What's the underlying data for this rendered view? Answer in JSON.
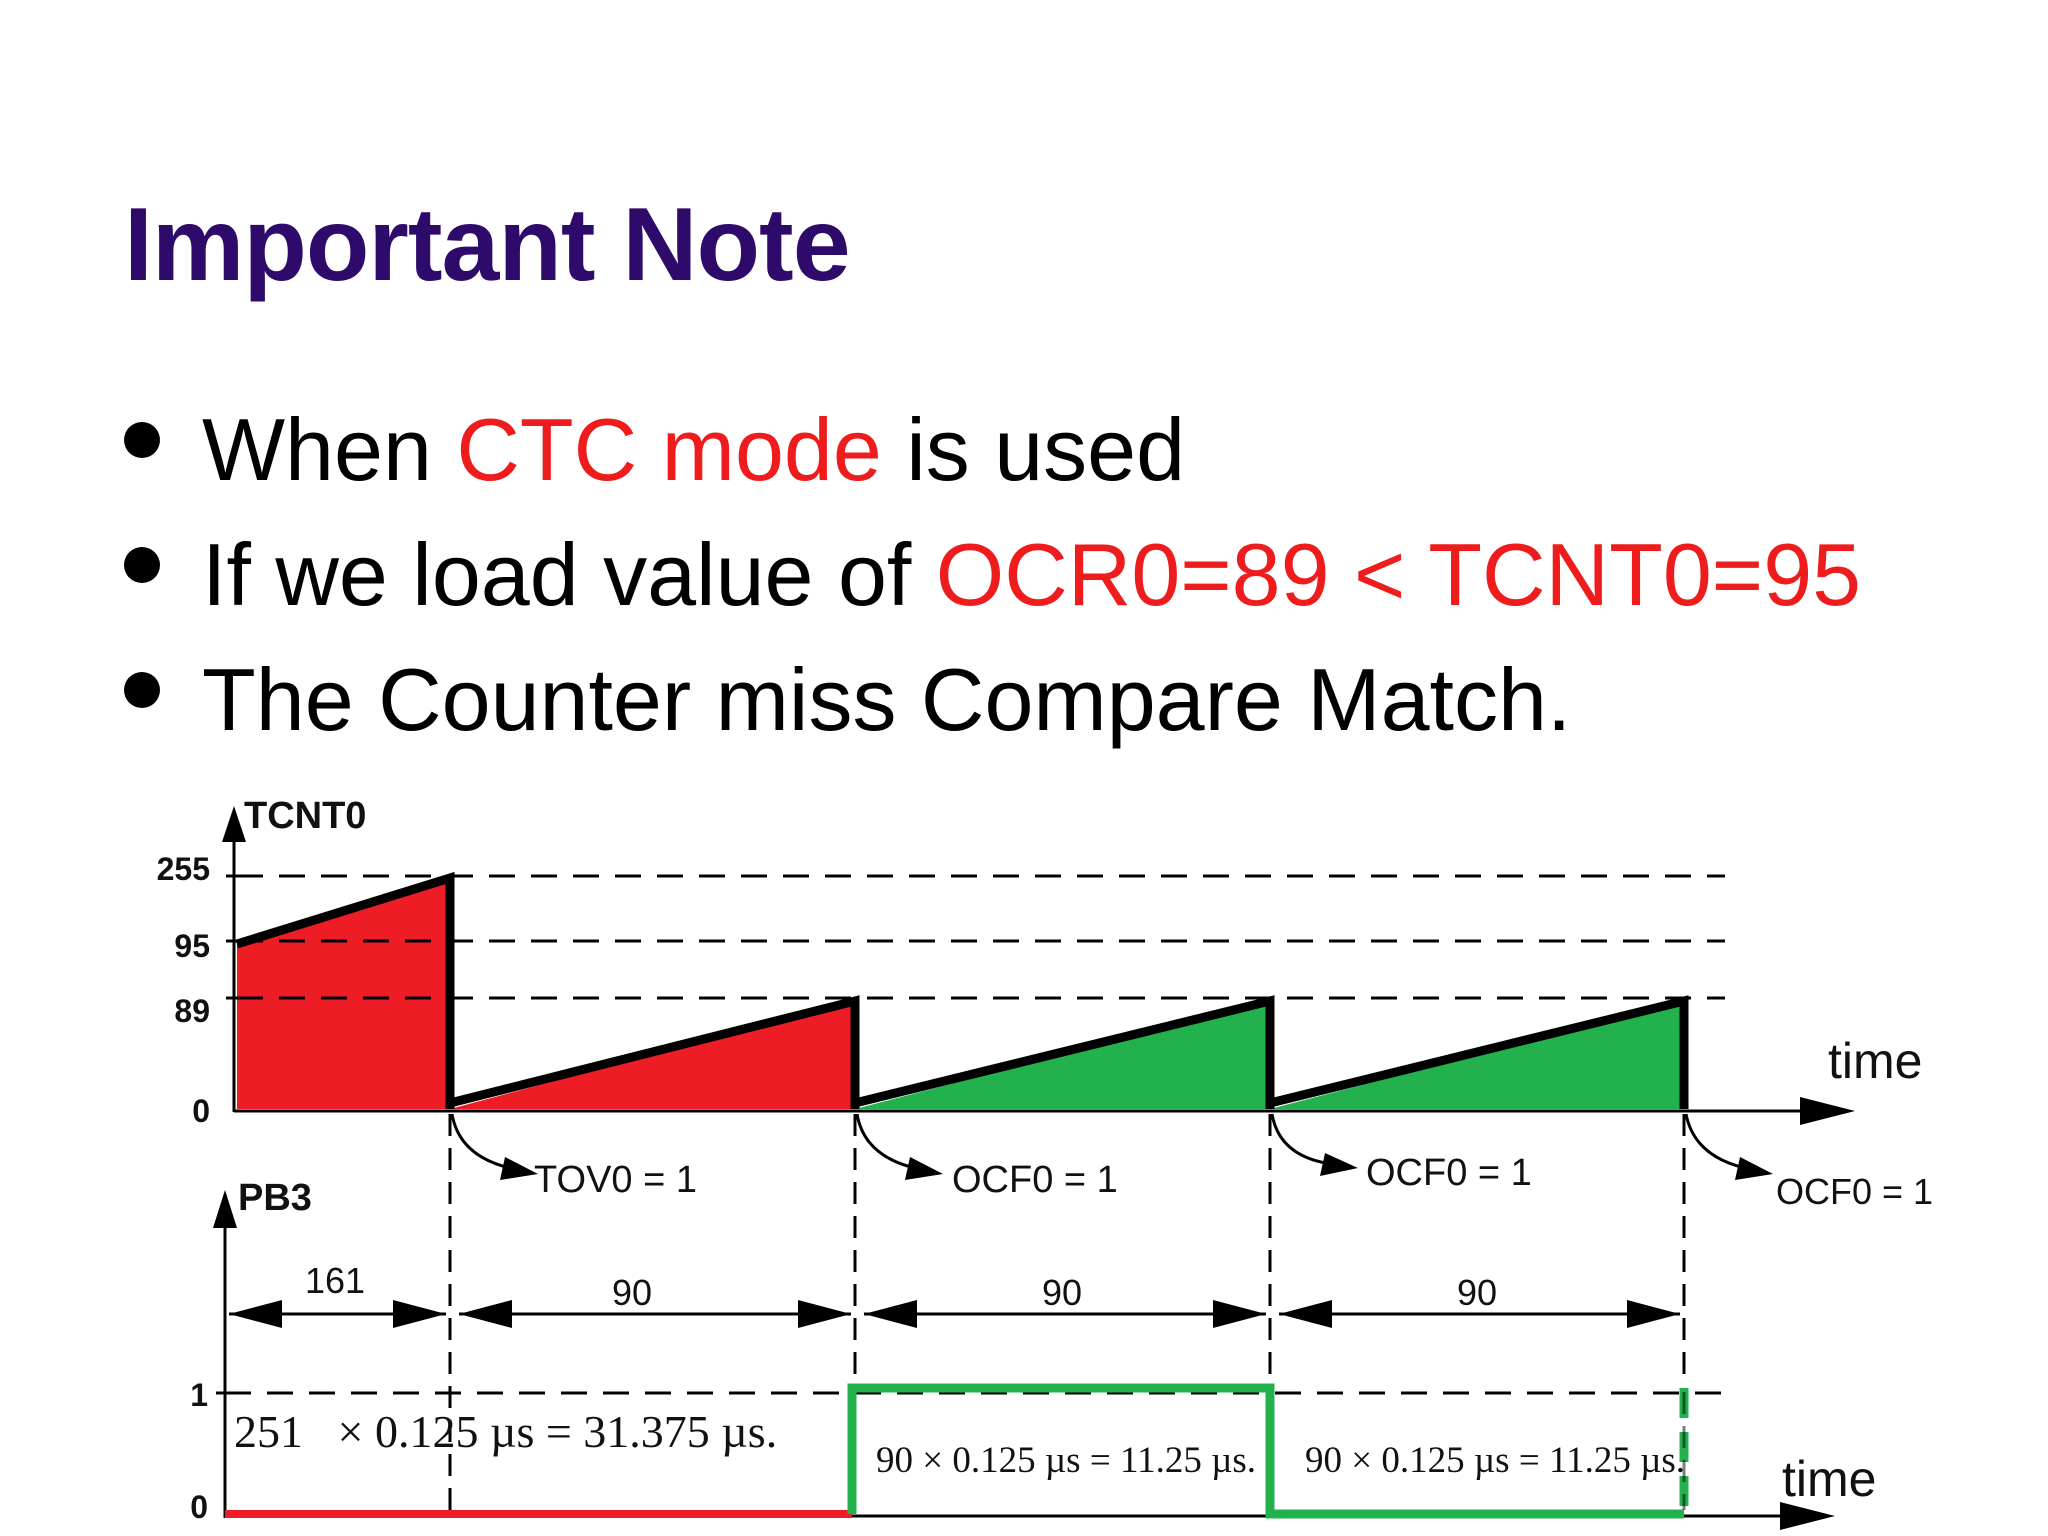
{
  "slide": {
    "title": "Important Note",
    "bullets": [
      {
        "pre": "When ",
        "hl": "CTC mode",
        "post": " is used"
      },
      {
        "pre": "If we load value of ",
        "hl": "OCR0=89 < TCNT0=95",
        "post": ""
      },
      {
        "pre": "The Counter miss Compare Match.",
        "hl": "",
        "post": ""
      }
    ]
  },
  "diagram": {
    "top_axis_label": "TCNT0",
    "top_ticks": [
      "255",
      "95",
      "89",
      "0"
    ],
    "time_label": "time",
    "flags": [
      "TOV0 = 1",
      "OCF0 = 1",
      "OCF0 = 1",
      "OCF0 = 1"
    ],
    "bottom_axis_label": "PB3",
    "bottom_ticks": [
      "1",
      "0"
    ],
    "intervals": [
      "161",
      "90",
      "90",
      "90"
    ],
    "formulas": [
      "251   × 0.125 µs = 31.375 µs.",
      "90 × 0.125 µs = 11.25 µs.",
      "90 × 0.125 µs = 11.25 µs."
    ],
    "colors": {
      "red": "#ee1c24",
      "green": "#22b14c",
      "title": "#2e0a6b"
    }
  }
}
